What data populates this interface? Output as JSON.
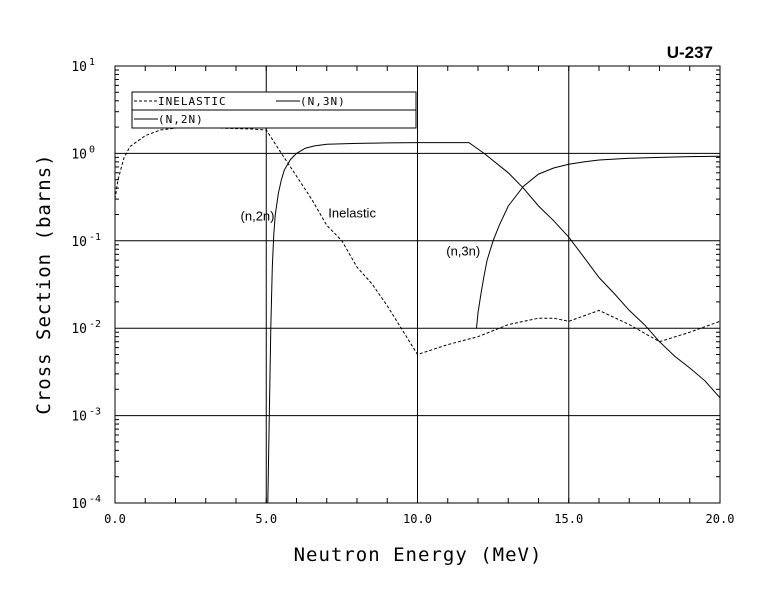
{
  "chart_data": {
    "type": "line",
    "title": "U-237",
    "xlabel": "Neutron Energy (MeV)",
    "ylabel": "Cross Section (barns)",
    "xlim": [
      0,
      20
    ],
    "ylim": [
      0.0001,
      10
    ],
    "yscale": "log",
    "grid": true,
    "legend_position": "top-left",
    "x_ticks": [
      {
        "value": 0,
        "label": "0.0"
      },
      {
        "value": 5,
        "label": "5.0"
      },
      {
        "value": 10,
        "label": "10.0"
      },
      {
        "value": 15,
        "label": "15.0"
      },
      {
        "value": 20,
        "label": "20.0"
      }
    ],
    "y_ticks": [
      {
        "value": 0.0001,
        "base": "10",
        "exp": "-4"
      },
      {
        "value": 0.001,
        "base": "10",
        "exp": "-3"
      },
      {
        "value": 0.01,
        "base": "10",
        "exp": "-2"
      },
      {
        "value": 0.1,
        "base": "10",
        "exp": "-1"
      },
      {
        "value": 1,
        "base": "10",
        "exp": "0"
      },
      {
        "value": 10,
        "base": "10",
        "exp": "1"
      }
    ],
    "series": [
      {
        "name": "INELASTIC",
        "style": "dashed",
        "x": [
          0.0,
          0.1,
          0.3,
          0.5,
          1.0,
          1.5,
          2.0,
          2.5,
          3.0,
          3.5,
          4.0,
          4.5,
          5.0,
          5.5,
          6.0,
          6.5,
          7.0,
          7.5,
          8.0,
          8.5,
          9.0,
          9.5,
          10.0,
          11.0,
          12.0,
          13.0,
          14.0,
          14.5,
          15.0,
          16.0,
          17.0,
          18.0,
          19.0,
          20.0
        ],
        "y": [
          0.3,
          0.5,
          0.9,
          1.2,
          1.6,
          1.85,
          1.95,
          2.0,
          2.0,
          1.95,
          1.92,
          1.9,
          1.85,
          1.0,
          0.55,
          0.3,
          0.15,
          0.1,
          0.05,
          0.032,
          0.018,
          0.0095,
          0.005,
          0.0065,
          0.008,
          0.011,
          0.013,
          0.013,
          0.012,
          0.016,
          0.011,
          0.007,
          0.009,
          0.012
        ]
      },
      {
        "name": "(N,2N)",
        "style": "solid",
        "x": [
          5.05,
          5.1,
          5.15,
          5.2,
          5.25,
          5.3,
          5.4,
          5.5,
          5.6,
          5.8,
          6.0,
          6.3,
          6.6,
          7.0,
          8.0,
          9.0,
          10.0,
          11.0,
          11.7,
          12.2,
          13.0,
          13.5,
          14.0,
          14.5,
          15.0,
          15.5,
          16.0,
          16.5,
          17.0,
          17.5,
          18.0,
          18.5,
          19.0,
          19.5,
          20.0
        ],
        "y": [
          0.0001,
          0.001,
          0.01,
          0.05,
          0.12,
          0.2,
          0.35,
          0.5,
          0.65,
          0.85,
          1.0,
          1.15,
          1.22,
          1.27,
          1.3,
          1.32,
          1.33,
          1.33,
          1.33,
          1.0,
          0.6,
          0.4,
          0.25,
          0.17,
          0.11,
          0.065,
          0.038,
          0.025,
          0.016,
          0.011,
          0.007,
          0.0048,
          0.0035,
          0.0025,
          0.0016
        ]
      },
      {
        "name": "(N,3N)",
        "style": "solid",
        "x": [
          11.95,
          12.0,
          12.1,
          12.2,
          12.3,
          12.5,
          12.7,
          13.0,
          13.5,
          14.0,
          14.5,
          15.0,
          15.5,
          16.0,
          17.0,
          18.0,
          19.0,
          20.0
        ],
        "y": [
          0.01,
          0.015,
          0.025,
          0.04,
          0.06,
          0.1,
          0.15,
          0.25,
          0.42,
          0.58,
          0.68,
          0.75,
          0.8,
          0.84,
          0.88,
          0.9,
          0.92,
          0.93
        ]
      }
    ],
    "annotations": [
      {
        "text": "(n,2n)",
        "x": 4.15,
        "y": 0.17
      },
      {
        "text": "Inelastic",
        "x": 7.05,
        "y": 0.185
      },
      {
        "text": "(n,3n)",
        "x": 10.95,
        "y": 0.068
      }
    ]
  }
}
